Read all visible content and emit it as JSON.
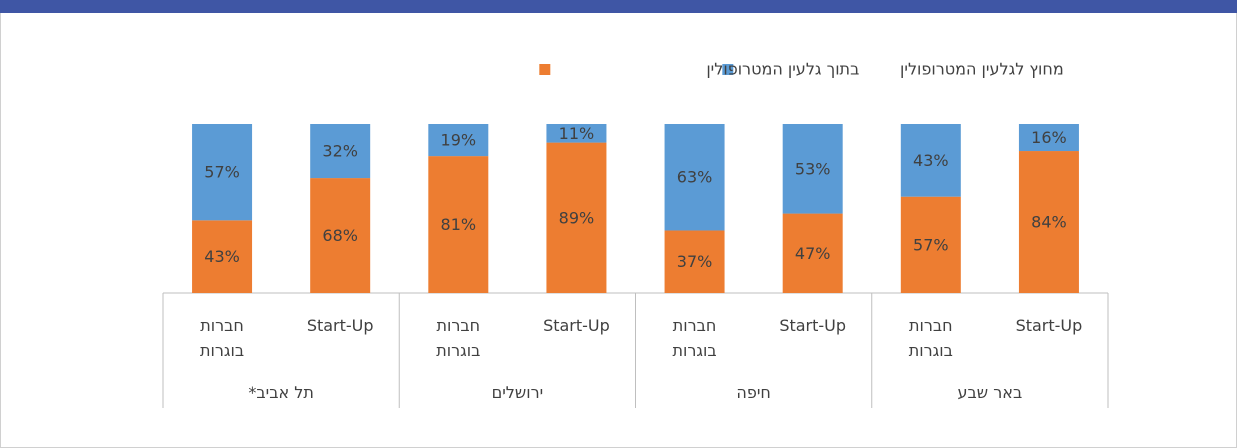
{
  "chart_data": {
    "type": "stacked-bar",
    "categories": [
      "Start-Up",
      "חברות בוגרות",
      "Start-Up",
      "חברות בוגרות",
      "Start-Up",
      "חברות בוגרות",
      "Start-Up",
      "חברות בוגרות"
    ],
    "groups": [
      "באר שבע",
      "חיפה",
      "ירושלים",
      "תל אביב*"
    ],
    "series": [
      {
        "name": "בתוך גלעין המטרופולין",
        "color": "#ed7d31",
        "values": [
          84,
          57,
          47,
          37,
          89,
          81,
          68,
          43
        ],
        "value_labels": [
          "84%",
          "57%",
          "47%",
          "37%",
          "89%",
          "81%",
          "68%",
          "43%"
        ]
      },
      {
        "name": "מחוץ לגלעין המטרופולין",
        "color": "#5b9bd5",
        "values": [
          16,
          43,
          53,
          63,
          11,
          19,
          32,
          57
        ],
        "value_labels": [
          "16%",
          "43%",
          "53%",
          "63%",
          "11%",
          "19%",
          "32%",
          "57%"
        ]
      }
    ],
    "ylim": [
      0,
      100
    ]
  }
}
